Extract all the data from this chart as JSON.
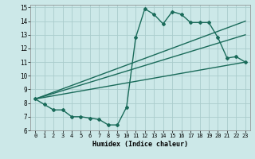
{
  "xlabel": "Humidex (Indice chaleur)",
  "xlim": [
    -0.5,
    23.5
  ],
  "ylim": [
    6,
    15.2
  ],
  "yticks": [
    6,
    7,
    8,
    9,
    10,
    11,
    12,
    13,
    14,
    15
  ],
  "xticks": [
    0,
    1,
    2,
    3,
    4,
    5,
    6,
    7,
    8,
    9,
    10,
    11,
    12,
    13,
    14,
    15,
    16,
    17,
    18,
    19,
    20,
    21,
    22,
    23
  ],
  "background_color": "#cce8e8",
  "grid_color": "#aacccc",
  "line_color": "#1a6b5a",
  "line_width": 1.0,
  "marker": "D",
  "marker_size": 2.0,
  "main_line": {
    "x": [
      0,
      1,
      2,
      3,
      4,
      5,
      6,
      7,
      8,
      9,
      10,
      11,
      12,
      13,
      14,
      15,
      16,
      17,
      18,
      19,
      20,
      21,
      22,
      23
    ],
    "y": [
      8.3,
      7.9,
      7.5,
      7.5,
      7.0,
      7.0,
      6.9,
      6.8,
      6.4,
      6.4,
      7.7,
      12.8,
      14.9,
      14.5,
      13.8,
      14.7,
      14.5,
      13.9,
      13.9,
      13.9,
      12.8,
      11.3,
      11.4,
      11.0
    ]
  },
  "trend_lines": [
    {
      "x": [
        0,
        23
      ],
      "y": [
        8.3,
        11.0
      ]
    },
    {
      "x": [
        0,
        23
      ],
      "y": [
        8.3,
        13.0
      ]
    },
    {
      "x": [
        0,
        23
      ],
      "y": [
        8.3,
        14.0
      ]
    }
  ]
}
